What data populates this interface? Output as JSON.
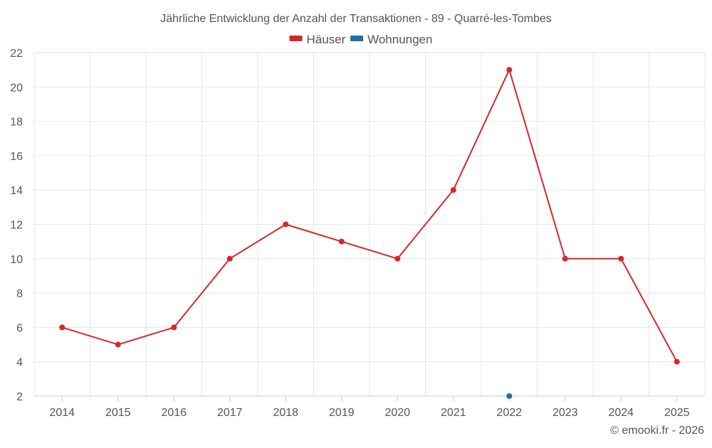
{
  "chart_data": {
    "type": "line",
    "title": "Jährliche Entwicklung der Anzahl der Transaktionen - 89 - Quarré-les-Tombes",
    "x": [
      "2014",
      "2015",
      "2016",
      "2017",
      "2018",
      "2019",
      "2020",
      "2021",
      "2022",
      "2023",
      "2024",
      "2025"
    ],
    "series": [
      {
        "name": "Häuser",
        "color": "#d62728",
        "values": [
          6,
          5,
          6,
          10,
          12,
          11,
          10,
          14,
          21,
          10,
          10,
          4
        ]
      },
      {
        "name": "Wohnungen",
        "color": "#1f6ea8",
        "values": [
          null,
          null,
          null,
          null,
          null,
          null,
          null,
          null,
          2,
          null,
          null,
          null
        ]
      }
    ],
    "ylim": [
      2,
      22
    ],
    "yticks": [
      2,
      4,
      6,
      8,
      10,
      12,
      14,
      16,
      18,
      20,
      22
    ],
    "xlabel": "",
    "ylabel": "",
    "grid": true,
    "legend_position": "top-center"
  },
  "credit": "© emooki.fr - 2026"
}
